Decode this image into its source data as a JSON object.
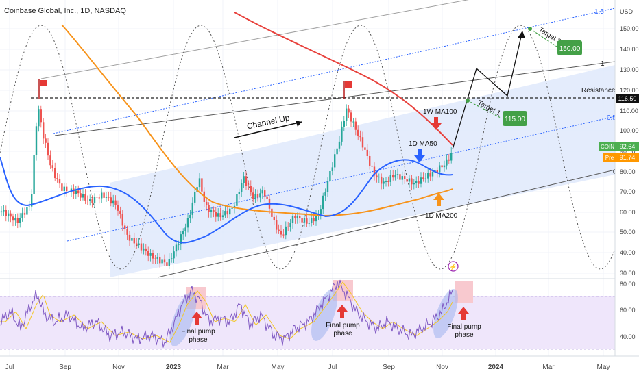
{
  "header": {
    "title": "Coinbase Global, Inc., 1D, NASDAQ"
  },
  "price_axis": {
    "currency": "USD",
    "ticks": [
      "150.00",
      "140.00",
      "130.00",
      "120.00",
      "110.00",
      "100.00",
      "90.00",
      "80.00",
      "70.00",
      "60.00",
      "50.00",
      "40.00",
      "30.00"
    ],
    "labels": {
      "resistance_value": "116.50",
      "coin_label": "COIN",
      "coin_value": "92.64",
      "pre_label": "Pre",
      "pre_value": "91.74"
    }
  },
  "rsi_axis": {
    "ticks": [
      "80.00",
      "60.00",
      "40.00"
    ]
  },
  "time_axis": {
    "labels": [
      "Jul",
      "Sep",
      "Nov",
      "2023",
      "Mar",
      "May",
      "Jul",
      "Sep",
      "Nov",
      "2024",
      "Mar",
      "May"
    ]
  },
  "fib_labels": {
    "level_1_5": "1.5",
    "level_1": "1",
    "level_0_5": "0.5",
    "level_0": "0"
  },
  "annotations": {
    "channel_up": "Channel Up",
    "resistance_1": "Resistance 1",
    "ma100_label": "1W MA100",
    "ma50_label": "1D MA50",
    "ma200_label": "1D MA200",
    "target_1": "Target 1",
    "target_1_value": "115.00",
    "target_2": "Target 2",
    "target_2_value": "150.00",
    "pump_label_1": "Final pump phase",
    "pump_label_2": "Final pump phase",
    "pump_label_3": "Final pump phase"
  },
  "colors": {
    "bull": "#26a69a",
    "bear": "#ef5350",
    "ma100": "#e8413c",
    "ma50": "#2962ff",
    "ma200": "#f7931a",
    "channel_fill": "#dfe9fb",
    "target_box": "#43a047",
    "rsi_line": "#7e57c2",
    "rsi_ma": "#f3c623",
    "pump_highlight": "#f8c9cf",
    "coin_badge": "#4caf50",
    "pre_badge": "#ff9800"
  },
  "chart_data": {
    "type": "candlestick",
    "symbol": "COIN",
    "timeframe": "1D",
    "price_range": [
      30,
      153
    ],
    "approx_closes": [
      {
        "date": "2022-07",
        "value": 55
      },
      {
        "date": "2022-08",
        "value": 95
      },
      {
        "date": "2022-09",
        "value": 70
      },
      {
        "date": "2022-10",
        "value": 65
      },
      {
        "date": "2022-11",
        "value": 48
      },
      {
        "date": "2022-12",
        "value": 35
      },
      {
        "date": "2023-01",
        "value": 58
      },
      {
        "date": "2023-02",
        "value": 75
      },
      {
        "date": "2023-03",
        "value": 65
      },
      {
        "date": "2023-04",
        "value": 60
      },
      {
        "date": "2023-05",
        "value": 55
      },
      {
        "date": "2023-06",
        "value": 75
      },
      {
        "date": "2023-07",
        "value": 105
      },
      {
        "date": "2023-08",
        "value": 85
      },
      {
        "date": "2023-09",
        "value": 78
      },
      {
        "date": "2023-10",
        "value": 75
      },
      {
        "date": "2023-11",
        "value": 92.64
      }
    ],
    "horizontal_levels": [
      {
        "name": "Resistance 1",
        "value": 116.5
      }
    ],
    "targets": [
      {
        "name": "Target 1",
        "value": 115.0
      },
      {
        "name": "Target 2",
        "value": 150.0
      }
    ],
    "last_price": 92.64,
    "premarket_price": 91.74,
    "rsi_range": [
      25,
      85
    ]
  }
}
